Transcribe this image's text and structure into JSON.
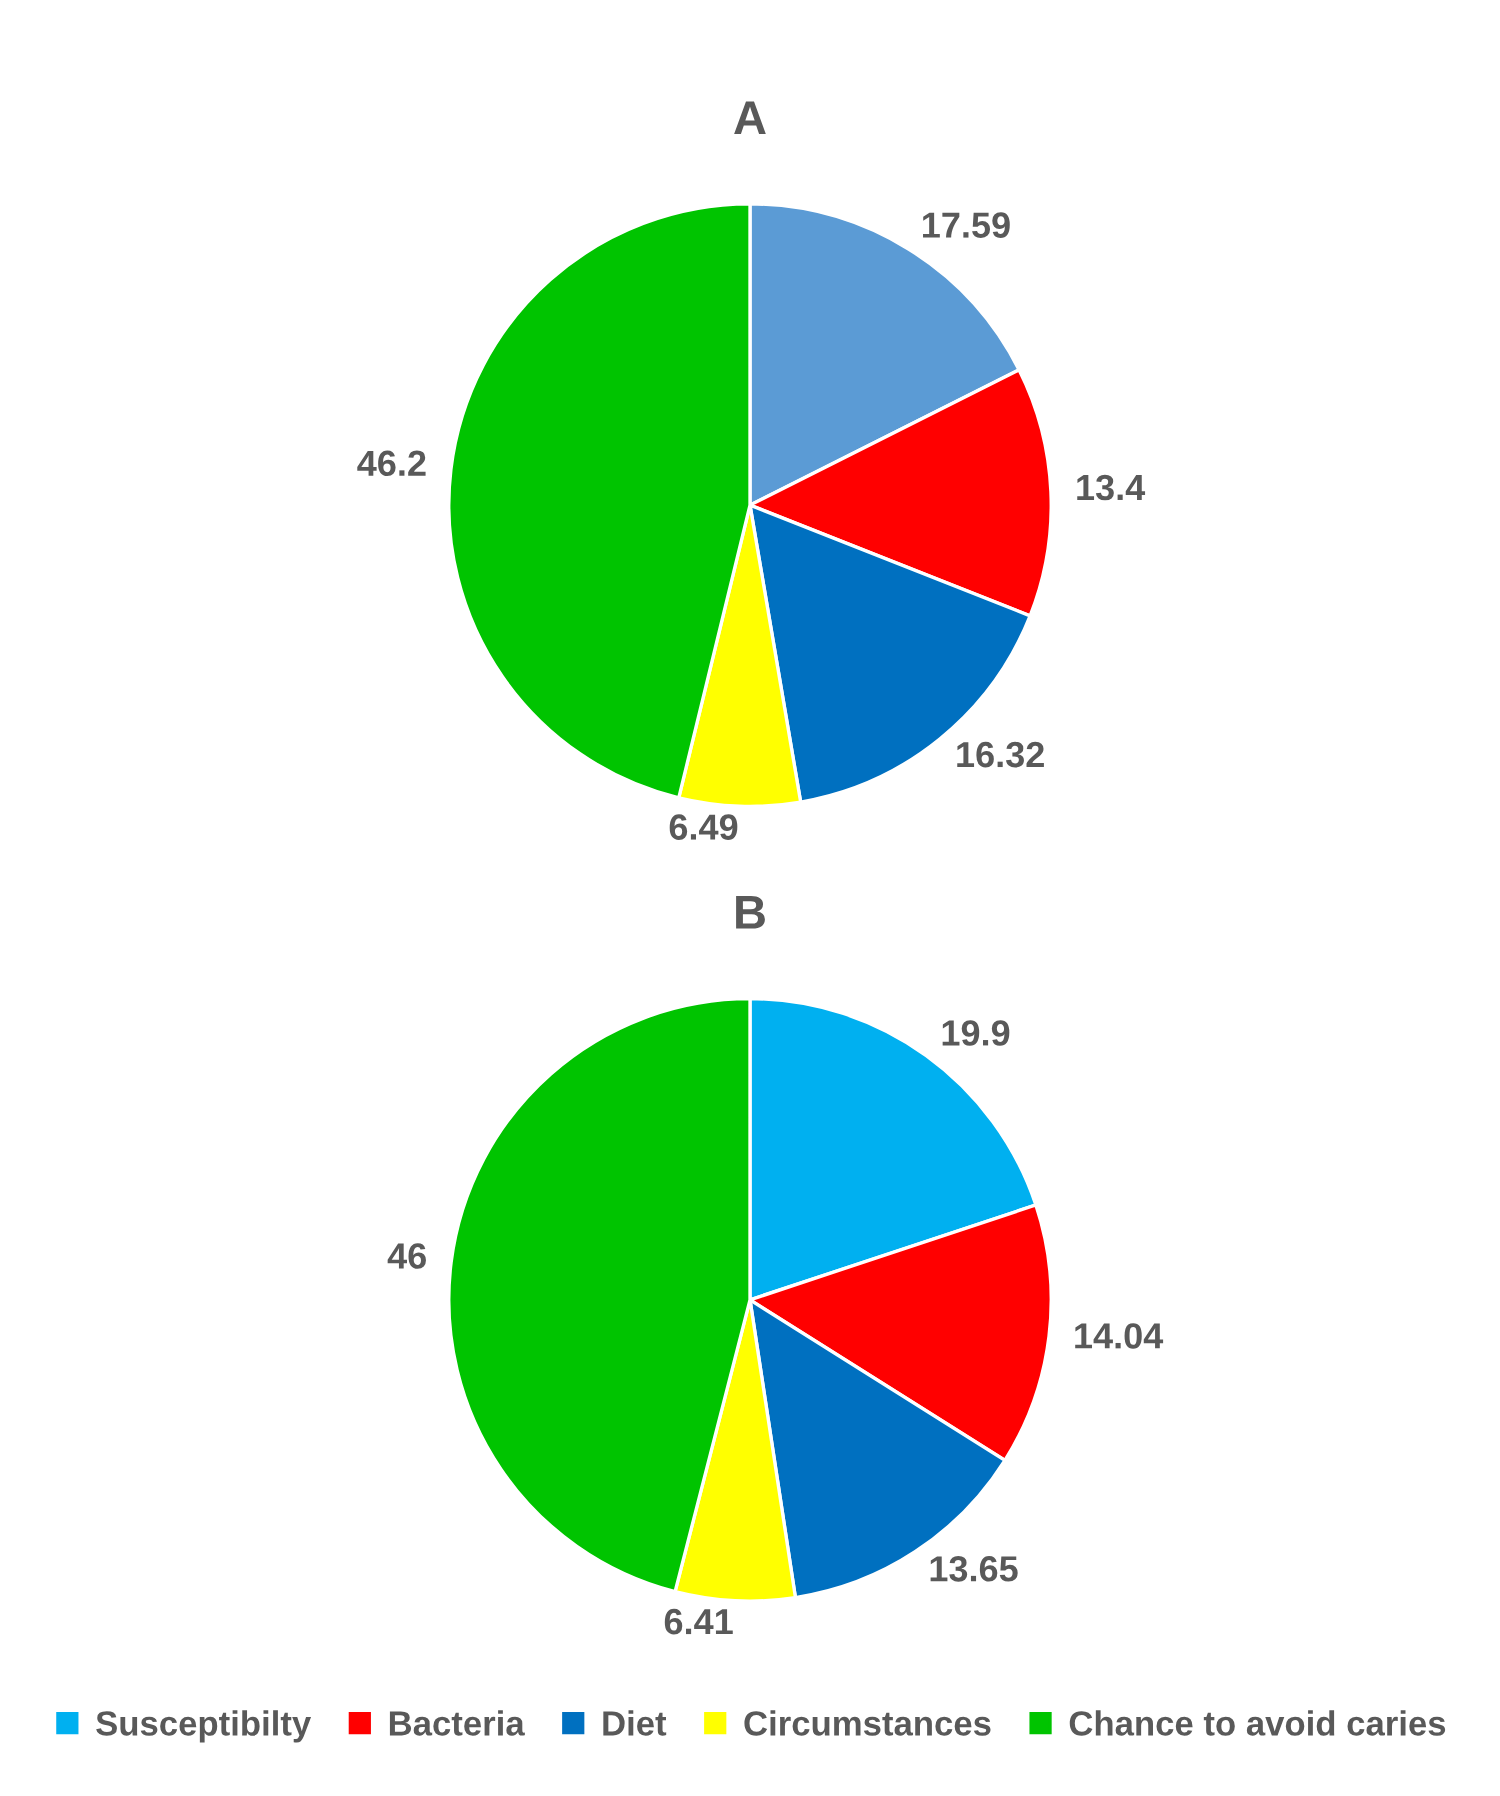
{
  "chart_data": [
    {
      "type": "pie",
      "title": "A",
      "categories": [
        null,
        null,
        null,
        null,
        null
      ],
      "values": [
        17.59,
        13.4,
        16.32,
        6.49,
        46.2
      ],
      "colors": [
        "#5b9bd5",
        "#ff0000",
        "#0070c0",
        "#ffff00",
        "#00c400"
      ],
      "data_labels": true
    },
    {
      "type": "pie",
      "title": "B",
      "categories": [
        "Susceptibilty",
        "Bacteria",
        "Diet",
        "Circumstances",
        "Chance to avoid caries"
      ],
      "values": [
        19.9,
        14.04,
        13.65,
        6.41,
        46
      ],
      "colors": [
        "#00b0f0",
        "#ff0000",
        "#0070c0",
        "#ffff00",
        "#00c400"
      ],
      "data_labels": true,
      "legend": "bottom"
    }
  ]
}
